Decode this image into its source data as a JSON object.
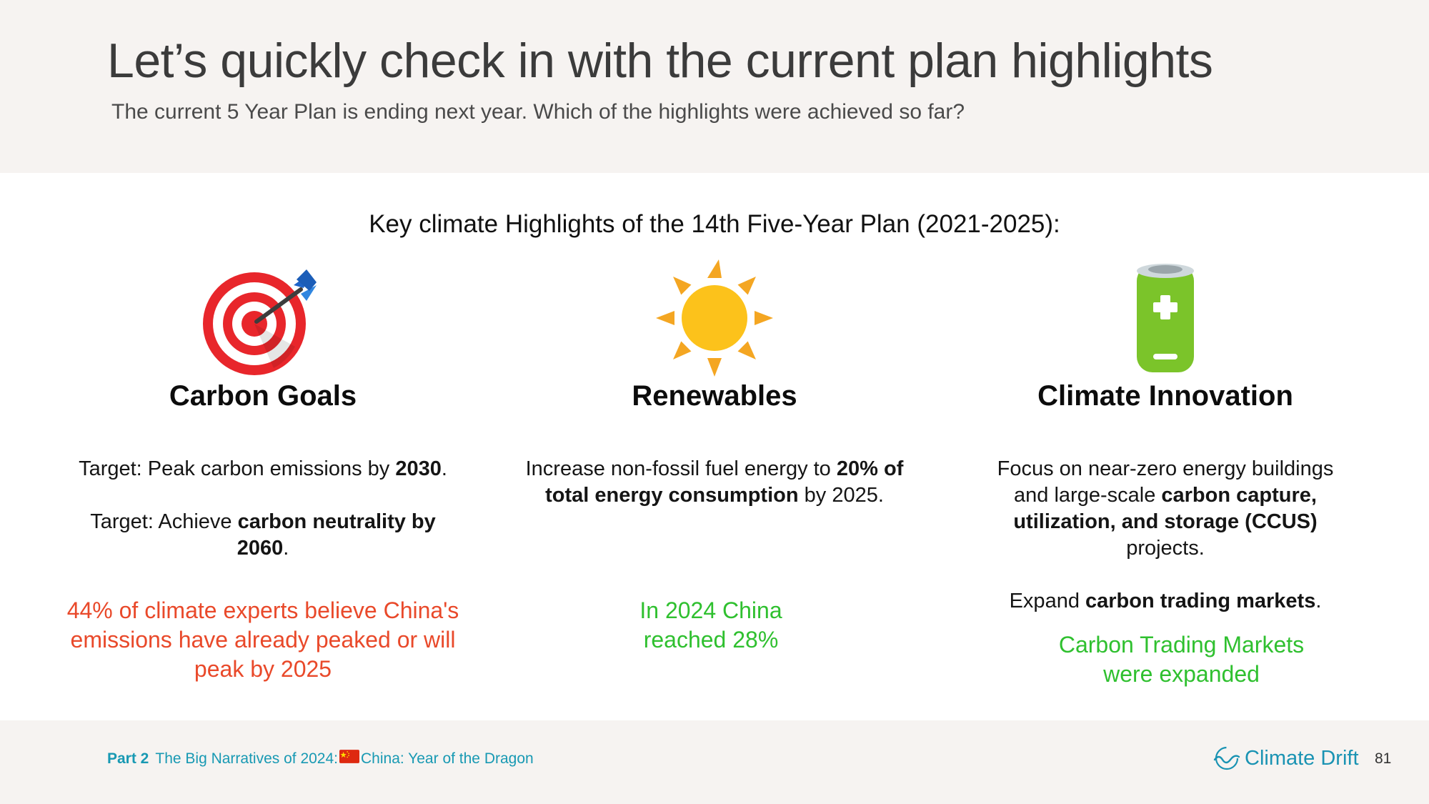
{
  "header": {
    "title": "Let’s quickly check in with the current plan highlights",
    "subtitle": "The current 5 Year Plan is ending next year. Which of the highlights were achieved so far?"
  },
  "section_heading": "Key climate Highlights of the 14th Five-Year Plan (2021-2025):",
  "columns": [
    {
      "icon": "target-dart-icon",
      "heading": "Carbon Goals",
      "p1": {
        "a": "Target: Peak carbon emissions by ",
        "b": "2030",
        "c": "."
      },
      "p2": {
        "a": "Target: Achieve ",
        "b": "carbon neutrality by 2060",
        "c": "."
      },
      "result": "44% of climate experts believe China's emissions have already peaked or will peak by 2025"
    },
    {
      "icon": "sun-icon",
      "heading": "Renewables",
      "p1": {
        "a": "Increase non-fossil fuel energy to ",
        "b": "20% of total energy consumption",
        "c": " by 2025."
      },
      "result": "In 2024 China reached 28%"
    },
    {
      "icon": "battery-icon",
      "heading": "Climate Innovation",
      "p1": {
        "a": "Focus on near-zero energy buildings and large-scale ",
        "b": "carbon capture, utilization, and storage (CCUS)",
        "c": " projects."
      },
      "p2": {
        "a": "Expand ",
        "b": "carbon trading markets",
        "c": "."
      },
      "result": "Carbon Trading Markets were expanded"
    }
  ],
  "footer": {
    "part_label": "Part 2",
    "narrative_prefix": "The Big Narratives of 2024:",
    "narrative_suffix": "China: Year of the Dragon",
    "flag_icon": "china-flag-icon",
    "logo_text": "Climate Drift",
    "page_number": "81"
  },
  "colors": {
    "band": "#f6f3f1",
    "red_result": "#e9492a",
    "green_result": "#2fc02f",
    "teal": "#1899b3"
  }
}
